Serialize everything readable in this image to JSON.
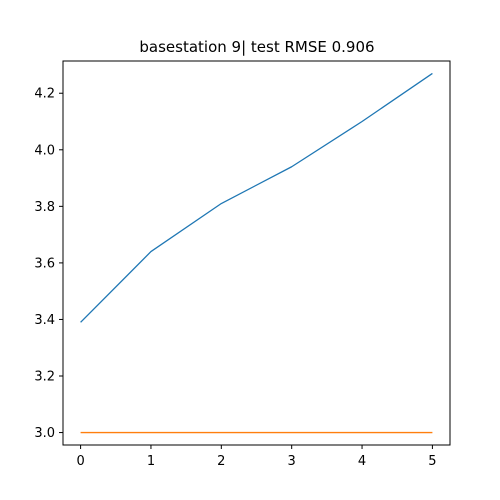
{
  "chart_data": {
    "type": "line",
    "title": "basestation 9| test RMSE 0.906",
    "xlabel": "",
    "ylabel": "",
    "x": [
      0,
      1,
      2,
      3,
      4,
      5
    ],
    "series": [
      {
        "values": [
          3.39,
          3.64,
          3.81,
          3.94,
          4.1,
          4.27
        ],
        "color": "#1f77b4"
      },
      {
        "values": [
          3.0,
          3.0,
          3.0,
          3.0,
          3.0,
          3.0
        ],
        "color": "#ff7f0e"
      }
    ],
    "xlim": [
      -0.25,
      5.25
    ],
    "ylim": [
      2.956,
      4.314
    ],
    "xticks": [
      0,
      1,
      2,
      3,
      4,
      5
    ],
    "yticks": [
      3.0,
      3.2,
      3.4,
      3.6,
      3.8,
      4.0,
      4.2
    ],
    "xtick_labels": [
      "0",
      "1",
      "2",
      "3",
      "4",
      "5"
    ],
    "ytick_labels": [
      "3.0",
      "3.2",
      "3.4",
      "3.6",
      "3.8",
      "4.0",
      "4.2"
    ],
    "grid": false,
    "legend": false
  }
}
